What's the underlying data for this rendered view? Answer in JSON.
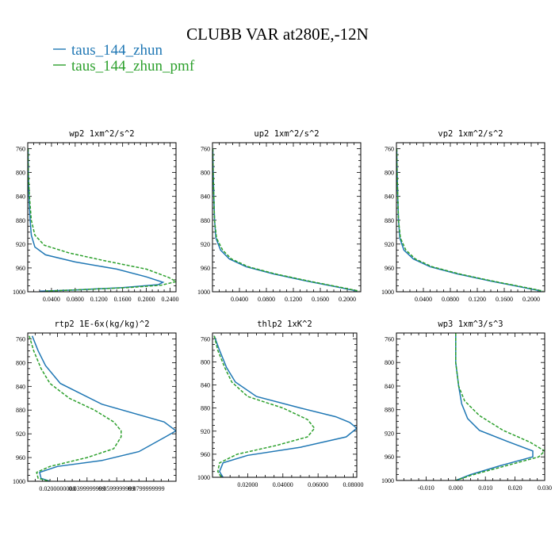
{
  "figure": {
    "title": "CLUBB VAR at280E,-12N",
    "legend": [
      {
        "label": "taus_144_zhun",
        "color": "#1f77b4",
        "dash": false
      },
      {
        "label": "taus_144_zhun_pmf",
        "color": "#2ca02c",
        "dash": true
      }
    ]
  },
  "chart_data": [
    {
      "type": "line",
      "title": "wp2  1xm^2/s^2",
      "xlabel": "",
      "ylabel": "",
      "xlim": [
        0,
        0.25
      ],
      "ylim": [
        1000,
        750
      ],
      "y_inverted": true,
      "xticks": [
        0.04,
        0.08,
        0.12,
        0.16,
        0.2,
        0.24
      ],
      "xtick_labels": [
        "0.0400",
        "0.0800",
        "0.1200",
        "0.1600",
        "0.2000",
        "0.2400"
      ],
      "yticks": [
        760,
        800,
        840,
        880,
        920,
        960,
        1000
      ],
      "series": [
        {
          "name": "taus_144_zhun",
          "color": "#1f77b4",
          "dash": false,
          "points": [
            [
              0.0005,
              760
            ],
            [
              0.001,
              800
            ],
            [
              0.002,
              840
            ],
            [
              0.004,
              880
            ],
            [
              0.006,
              905
            ],
            [
              0.012,
              925
            ],
            [
              0.03,
              938
            ],
            [
              0.08,
              950
            ],
            [
              0.15,
              962
            ],
            [
              0.2,
              975
            ],
            [
              0.228,
              984
            ],
            [
              0.22,
              988
            ],
            [
              0.16,
              993
            ],
            [
              0.08,
              997
            ],
            [
              0.02,
              999
            ]
          ]
        },
        {
          "name": "taus_144_zhun_pmf",
          "color": "#2ca02c",
          "dash": true,
          "points": [
            [
              0.0005,
              760
            ],
            [
              0.001,
              800
            ],
            [
              0.003,
              840
            ],
            [
              0.006,
              880
            ],
            [
              0.012,
              905
            ],
            [
              0.028,
              922
            ],
            [
              0.07,
              935
            ],
            [
              0.13,
              948
            ],
            [
              0.2,
              962
            ],
            [
              0.238,
              976
            ],
            [
              0.25,
              983
            ],
            [
              0.225,
              989
            ],
            [
              0.17,
              993
            ],
            [
              0.1,
              996
            ],
            [
              0.03,
              999
            ]
          ]
        }
      ]
    },
    {
      "type": "line",
      "title": "up2  1xm^2/s^2",
      "xlabel": "",
      "ylabel": "",
      "xlim": [
        0,
        0.22
      ],
      "ylim": [
        1000,
        750
      ],
      "y_inverted": true,
      "xticks": [
        0.04,
        0.08,
        0.12,
        0.16,
        0.2
      ],
      "xtick_labels": [
        "0.0400",
        "0.0800",
        "0.1200",
        "0.1600",
        "0.2000"
      ],
      "yticks": [
        760,
        800,
        840,
        880,
        920,
        960,
        1000
      ],
      "series": [
        {
          "name": "taus_144_zhun",
          "color": "#1f77b4",
          "dash": false,
          "points": [
            [
              0.0005,
              760
            ],
            [
              0.001,
              800
            ],
            [
              0.002,
              840
            ],
            [
              0.003,
              880
            ],
            [
              0.005,
              910
            ],
            [
              0.012,
              930
            ],
            [
              0.025,
              945
            ],
            [
              0.05,
              958
            ],
            [
              0.09,
              970
            ],
            [
              0.14,
              982
            ],
            [
              0.185,
              992
            ],
            [
              0.215,
              999
            ]
          ]
        },
        {
          "name": "taus_144_zhun_pmf",
          "color": "#2ca02c",
          "dash": true,
          "points": [
            [
              0.0005,
              760
            ],
            [
              0.001,
              800
            ],
            [
              0.002,
              840
            ],
            [
              0.003,
              880
            ],
            [
              0.006,
              910
            ],
            [
              0.015,
              930
            ],
            [
              0.028,
              945
            ],
            [
              0.053,
              958
            ],
            [
              0.093,
              970
            ],
            [
              0.143,
              982
            ],
            [
              0.188,
              992
            ],
            [
              0.218,
              999
            ]
          ]
        }
      ]
    },
    {
      "type": "line",
      "title": "vp2  1xm^2/s^2",
      "xlabel": "",
      "ylabel": "",
      "xlim": [
        0,
        0.22
      ],
      "ylim": [
        1000,
        750
      ],
      "y_inverted": true,
      "xticks": [
        0.04,
        0.08,
        0.12,
        0.16,
        0.2
      ],
      "xtick_labels": [
        "0.0400",
        "0.0800",
        "0.1200",
        "0.1600",
        "0.2000"
      ],
      "yticks": [
        760,
        800,
        840,
        880,
        920,
        960,
        1000
      ],
      "series": [
        {
          "name": "taus_144_zhun",
          "color": "#1f77b4",
          "dash": false,
          "points": [
            [
              0.0005,
              760
            ],
            [
              0.001,
              800
            ],
            [
              0.002,
              840
            ],
            [
              0.003,
              880
            ],
            [
              0.005,
              910
            ],
            [
              0.011,
              930
            ],
            [
              0.025,
              945
            ],
            [
              0.05,
              958
            ],
            [
              0.09,
              970
            ],
            [
              0.14,
              982
            ],
            [
              0.185,
              992
            ],
            [
              0.215,
              999
            ]
          ]
        },
        {
          "name": "taus_144_zhun_pmf",
          "color": "#2ca02c",
          "dash": true,
          "points": [
            [
              0.0005,
              760
            ],
            [
              0.001,
              800
            ],
            [
              0.002,
              840
            ],
            [
              0.003,
              880
            ],
            [
              0.006,
              910
            ],
            [
              0.014,
              930
            ],
            [
              0.028,
              945
            ],
            [
              0.053,
              958
            ],
            [
              0.093,
              970
            ],
            [
              0.143,
              982
            ],
            [
              0.188,
              992
            ],
            [
              0.218,
              999
            ]
          ]
        }
      ]
    },
    {
      "type": "line",
      "title": "rtp2  1E-6x(kg/kg)^2",
      "xlabel": "",
      "ylabel": "",
      "xlim": [
        0,
        0.1
      ],
      "ylim": [
        1000,
        750
      ],
      "y_inverted": true,
      "xticks": [
        0.02,
        0.04,
        0.06,
        0.08
      ],
      "xtick_labels": [
        "0.0200000000",
        "0.0399999999",
        "0.0599999999",
        "0.0799999999"
      ],
      "yticks": [
        760,
        800,
        840,
        880,
        920,
        960,
        1000
      ],
      "series": [
        {
          "name": "taus_144_zhun",
          "color": "#1f77b4",
          "dash": false,
          "points": [
            [
              0.003,
              755
            ],
            [
              0.007,
              780
            ],
            [
              0.012,
              805
            ],
            [
              0.022,
              835
            ],
            [
              0.05,
              870
            ],
            [
              0.092,
              900
            ],
            [
              0.1,
              915
            ],
            [
              0.093,
              925
            ],
            [
              0.075,
              950
            ],
            [
              0.05,
              965
            ],
            [
              0.02,
              975
            ],
            [
              0.008,
              985
            ],
            [
              0.009,
              995
            ],
            [
              0.015,
              1000
            ]
          ]
        },
        {
          "name": "taus_144_zhun_pmf",
          "color": "#2ca02c",
          "dash": true,
          "points": [
            [
              0.001,
              755
            ],
            [
              0.004,
              780
            ],
            [
              0.009,
              810
            ],
            [
              0.015,
              835
            ],
            [
              0.028,
              860
            ],
            [
              0.045,
              880
            ],
            [
              0.058,
              900
            ],
            [
              0.063,
              915
            ],
            [
              0.063,
              925
            ],
            [
              0.058,
              945
            ],
            [
              0.04,
              960
            ],
            [
              0.015,
              975
            ],
            [
              0.006,
              985
            ],
            [
              0.007,
              995
            ],
            [
              0.015,
              1000
            ]
          ]
        }
      ]
    },
    {
      "type": "line",
      "title": "thlp2  1xK^2",
      "xlabel": "",
      "ylabel": "",
      "xlim": [
        0,
        0.082
      ],
      "ylim": [
        1000,
        750
      ],
      "y_inverted": true,
      "xticks": [
        0.02,
        0.04,
        0.06,
        0.08
      ],
      "xtick_labels": [
        "0.02000",
        "0.04000",
        "0.06000",
        "0.08000"
      ],
      "yticks": [
        760,
        800,
        840,
        880,
        920,
        960,
        1000
      ],
      "series": [
        {
          "name": "taus_144_zhun",
          "color": "#1f77b4",
          "dash": false,
          "points": [
            [
              0.001,
              755
            ],
            [
              0.004,
              780
            ],
            [
              0.008,
              810
            ],
            [
              0.013,
              835
            ],
            [
              0.025,
              860
            ],
            [
              0.05,
              880
            ],
            [
              0.07,
              895
            ],
            [
              0.078,
              905
            ],
            [
              0.082,
              915
            ],
            [
              0.076,
              930
            ],
            [
              0.05,
              948
            ],
            [
              0.02,
              962
            ],
            [
              0.006,
              975
            ],
            [
              0.004,
              990
            ],
            [
              0.006,
              1000
            ]
          ]
        },
        {
          "name": "taus_144_zhun_pmf",
          "color": "#2ca02c",
          "dash": true,
          "points": [
            [
              0.001,
              755
            ],
            [
              0.003,
              780
            ],
            [
              0.007,
              810
            ],
            [
              0.011,
              835
            ],
            [
              0.02,
              860
            ],
            [
              0.04,
              880
            ],
            [
              0.054,
              900
            ],
            [
              0.058,
              915
            ],
            [
              0.054,
              930
            ],
            [
              0.036,
              945
            ],
            [
              0.014,
              960
            ],
            [
              0.004,
              975
            ],
            [
              0.003,
              990
            ],
            [
              0.005,
              1000
            ]
          ]
        }
      ]
    },
    {
      "type": "line",
      "title": "wp3  1xm^3/s^3",
      "xlabel": "",
      "ylabel": "",
      "xlim": [
        -0.02,
        0.03
      ],
      "ylim": [
        1000,
        750
      ],
      "y_inverted": true,
      "xticks": [
        -0.01,
        0.0,
        0.01,
        0.02,
        0.03
      ],
      "xtick_labels": [
        "-0.010",
        "0.000",
        "0.010",
        "0.020",
        "0.030"
      ],
      "yticks": [
        760,
        800,
        840,
        880,
        920,
        960,
        1000
      ],
      "series": [
        {
          "name": "taus_144_zhun",
          "color": "#1f77b4",
          "dash": false,
          "points": [
            [
              0.0,
              750
            ],
            [
              0.0,
              800
            ],
            [
              0.001,
              840
            ],
            [
              0.002,
              870
            ],
            [
              0.004,
              895
            ],
            [
              0.008,
              915
            ],
            [
              0.018,
              935
            ],
            [
              0.026,
              950
            ],
            [
              0.026,
              960
            ],
            [
              0.015,
              975
            ],
            [
              0.005,
              990
            ],
            [
              0.0,
              1000
            ]
          ]
        },
        {
          "name": "taus_144_zhun_pmf",
          "color": "#2ca02c",
          "dash": true,
          "points": [
            [
              0.0,
              750
            ],
            [
              0.0,
              800
            ],
            [
              0.001,
              840
            ],
            [
              0.003,
              865
            ],
            [
              0.008,
              890
            ],
            [
              0.016,
              915
            ],
            [
              0.025,
              935
            ],
            [
              0.03,
              950
            ],
            [
              0.028,
              960
            ],
            [
              0.017,
              975
            ],
            [
              0.006,
              990
            ],
            [
              0.0,
              1000
            ]
          ]
        }
      ]
    }
  ]
}
